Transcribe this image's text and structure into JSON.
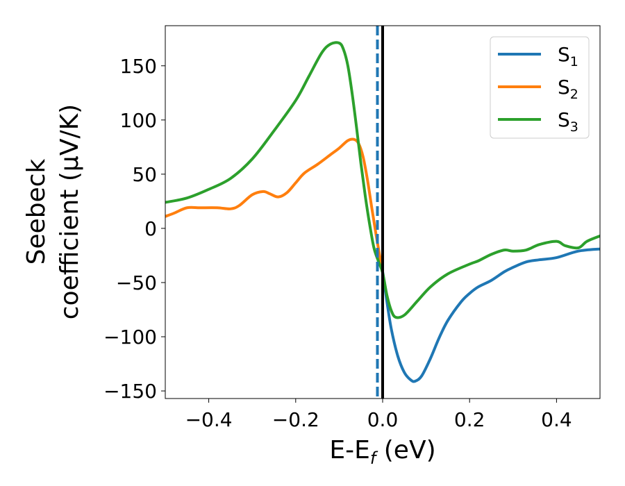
{
  "chart_data": {
    "type": "line",
    "xlabel": {
      "main": "E-E",
      "sub": "f",
      "unit": " (eV)"
    },
    "ylabel": {
      "line1": "Seebeck",
      "line2": "coefficient  (μV/K)"
    },
    "xlim": [
      -0.5,
      0.5
    ],
    "ylim": [
      -157,
      187
    ],
    "xticks": [
      -0.4,
      -0.2,
      0.0,
      0.2,
      0.4
    ],
    "xtick_labels": [
      "−0.4",
      "−0.2",
      "0.0",
      "0.2",
      "0.4"
    ],
    "yticks": [
      -150,
      -100,
      -50,
      0,
      50,
      100,
      150
    ],
    "ytick_labels": [
      "−150",
      "−100",
      "−50",
      "0",
      "50",
      "100",
      "150"
    ],
    "grid": false,
    "legend": {
      "position": "top-right"
    },
    "vlines": [
      {
        "x": 0.0,
        "style": "solid",
        "color": "#000000"
      },
      {
        "x": -0.012,
        "style": "dashed",
        "color": "#1f77b4"
      }
    ],
    "series": [
      {
        "name": "S",
        "sub": "1",
        "color": "#1f77b4",
        "x": [
          -0.012,
          -0.006,
          0.0,
          0.01,
          0.02,
          0.035,
          0.05,
          0.065,
          0.075,
          0.09,
          0.11,
          0.13,
          0.15,
          0.18,
          0.2,
          0.22,
          0.25,
          0.28,
          0.3,
          0.33,
          0.36,
          0.4,
          0.45,
          0.5
        ],
        "y": [
          -22,
          -30,
          -40,
          -68,
          -93,
          -118,
          -133,
          -140,
          -141,
          -136,
          -120,
          -101,
          -85,
          -68,
          -60,
          -54,
          -48,
          -40,
          -36,
          -31,
          -29,
          -27,
          -21,
          -19
        ]
      },
      {
        "name": "S",
        "sub": "2",
        "color": "#ff7f0e",
        "x": [
          -0.5,
          -0.48,
          -0.45,
          -0.42,
          -0.38,
          -0.35,
          -0.33,
          -0.3,
          -0.275,
          -0.26,
          -0.24,
          -0.22,
          -0.2,
          -0.18,
          -0.15,
          -0.12,
          -0.1,
          -0.08,
          -0.065,
          -0.055,
          -0.045,
          -0.035,
          -0.025,
          -0.015,
          -0.005,
          0.0
        ],
        "y": [
          11,
          14,
          19,
          19,
          19,
          18,
          21,
          31,
          34,
          32,
          29,
          33,
          42,
          51,
          59,
          68,
          74,
          81,
          82,
          78,
          66,
          45,
          19,
          -6,
          -29,
          -38
        ]
      },
      {
        "name": "S",
        "sub": "3",
        "color": "#2ca02c",
        "x": [
          -0.5,
          -0.45,
          -0.4,
          -0.35,
          -0.3,
          -0.25,
          -0.2,
          -0.17,
          -0.14,
          -0.12,
          -0.1,
          -0.09,
          -0.08,
          -0.07,
          -0.06,
          -0.05,
          -0.04,
          -0.03,
          -0.02,
          -0.01,
          0.0,
          0.01,
          0.02,
          0.03,
          0.05,
          0.08,
          0.11,
          0.15,
          0.2,
          0.22,
          0.25,
          0.28,
          0.3,
          0.33,
          0.36,
          0.4,
          0.42,
          0.45,
          0.47,
          0.5
        ],
        "y": [
          24,
          28,
          36,
          46,
          64,
          90,
          118,
          140,
          162,
          170,
          171,
          165,
          150,
          124,
          93,
          60,
          30,
          4,
          -18,
          -30,
          -41,
          -62,
          -76,
          -82,
          -80,
          -67,
          -54,
          -42,
          -33,
          -30,
          -24,
          -20,
          -21,
          -20,
          -15,
          -12,
          -16,
          -18,
          -12,
          -7
        ]
      }
    ]
  }
}
